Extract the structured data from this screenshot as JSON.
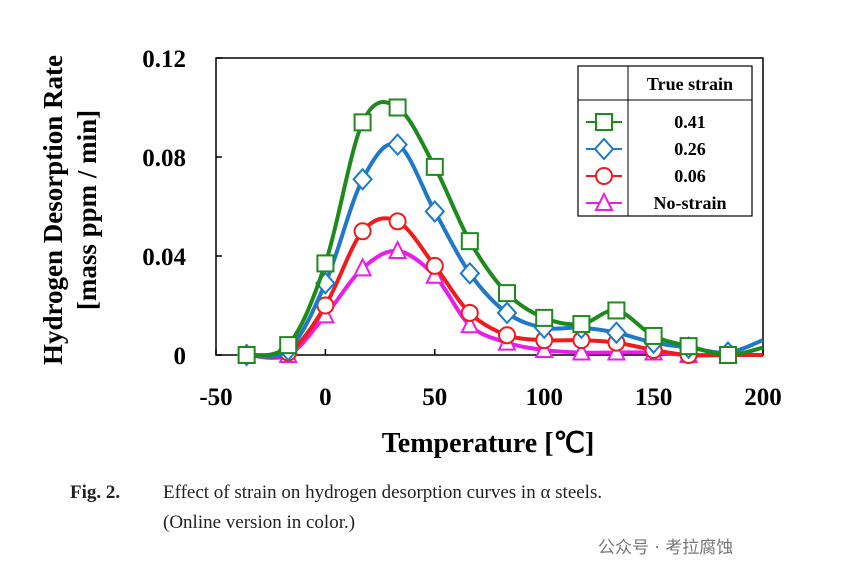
{
  "chart_data": {
    "type": "line",
    "xlabel": "Temperature [℃]",
    "ylabel_line1": "Hydrogen Desorption Rate",
    "ylabel_line2": "[mass ppm / min]",
    "xlim": [
      -50,
      200
    ],
    "ylim": [
      0,
      0.12
    ],
    "xticks": [
      "-50",
      "0",
      "50",
      "100",
      "150",
      "200"
    ],
    "xtick_values": [
      -50,
      0,
      50,
      100,
      150,
      200
    ],
    "yticks": [
      "0",
      "0.04",
      "0.08",
      "0.12"
    ],
    "ytick_values": [
      0,
      0.04,
      0.08,
      0.12
    ],
    "legend_title": "True strain",
    "legend_position": "top-right",
    "x": [
      -36,
      -17,
      0,
      17,
      33,
      50,
      66,
      83,
      100,
      117,
      133,
      150,
      166,
      184,
      200
    ],
    "series": [
      {
        "name": "0.41",
        "color": "#1e8a1e",
        "marker": "square",
        "values": [
          0,
          0.004,
          0.037,
          0.094,
          0.1,
          0.076,
          0.046,
          0.025,
          0.015,
          0.0125,
          0.018,
          0.0077,
          0.0036,
          0.0,
          0.003
        ]
      },
      {
        "name": "0.26",
        "color": "#1f78c8",
        "marker": "diamond",
        "values": [
          0,
          0.002,
          0.029,
          0.071,
          0.085,
          0.058,
          0.033,
          0.017,
          0.011,
          0.011,
          0.009,
          0.005,
          0.003,
          0.001,
          0.006
        ]
      },
      {
        "name": "0.06",
        "color": "#ee1c1c",
        "marker": "circle",
        "values": [
          0,
          0.001,
          0.02,
          0.05,
          0.054,
          0.036,
          0.017,
          0.008,
          0.006,
          0.006,
          0.005,
          0.002,
          0.0,
          0.0,
          0.0
        ]
      },
      {
        "name": "No-strain",
        "color": "#e81ee8",
        "marker": "triangle",
        "values": [
          0,
          0,
          0.016,
          0.035,
          0.042,
          0.032,
          0.012,
          0.005,
          0.002,
          0.001,
          0.001,
          0.001,
          0.0,
          0.0,
          0.0
        ]
      }
    ]
  },
  "caption": {
    "label": "Fig. 2.",
    "line1": "Effect of strain on hydrogen desorption curves in α steels.",
    "line2": "(Online version in color.)"
  },
  "watermark": "公众号 · 考拉腐蚀"
}
